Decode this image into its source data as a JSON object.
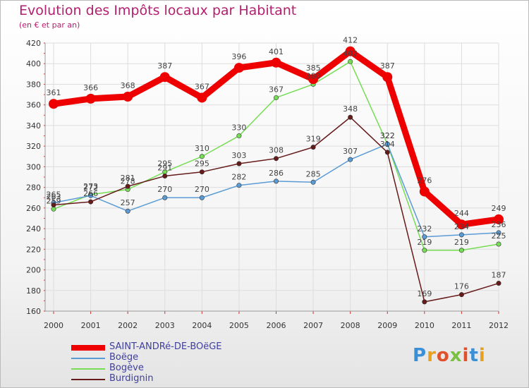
{
  "header": {
    "title": "Evolution des Impôts locaux par Habitant",
    "subtitle": "(en € et par an)"
  },
  "logo": {
    "text": "Proxiti",
    "colors": [
      "#3a8fd6",
      "#e8a020",
      "#e0502a",
      "#7ac143",
      "#e0502a",
      "#3a8fd6",
      "#e8a020"
    ]
  },
  "chart_data": {
    "type": "line",
    "title": "Evolution des Impôts locaux par Habitant",
    "subtitle": "(en € et par an)",
    "xlabel": "",
    "ylabel": "",
    "x": [
      "2000",
      "2001",
      "2002",
      "2003",
      "2004",
      "2005",
      "2006",
      "2007",
      "2008",
      "2009",
      "2010",
      "2011",
      "2012"
    ],
    "ylim": [
      160,
      420
    ],
    "yticks": [
      "160",
      "180",
      "200",
      "220",
      "240",
      "260",
      "280",
      "300",
      "320",
      "340",
      "360",
      "380",
      "400",
      "420"
    ],
    "grid": true,
    "series": [
      {
        "name": "SAINT-ANDRé-DE-BOëGE",
        "color": "#ee0000",
        "values": [
          361,
          366,
          368,
          387,
          367,
          396,
          401,
          385,
          412,
          387,
          276,
          244,
          249
        ]
      },
      {
        "name": "Boëge",
        "color": "#5b9bd5",
        "values": [
          265,
          272,
          257,
          270,
          270,
          282,
          286,
          285,
          307,
          322,
          232,
          234,
          236
        ]
      },
      {
        "name": "Bogève",
        "color": "#77dd55",
        "values": [
          259,
          273,
          278,
          295,
          310,
          330,
          367,
          380,
          402,
          322,
          219,
          219,
          225
        ]
      },
      {
        "name": "Burdignin",
        "color": "#661a1a",
        "values": [
          263,
          266,
          281,
          291,
          295,
          303,
          308,
          319,
          348,
          314,
          169,
          176,
          187
        ]
      }
    ]
  }
}
